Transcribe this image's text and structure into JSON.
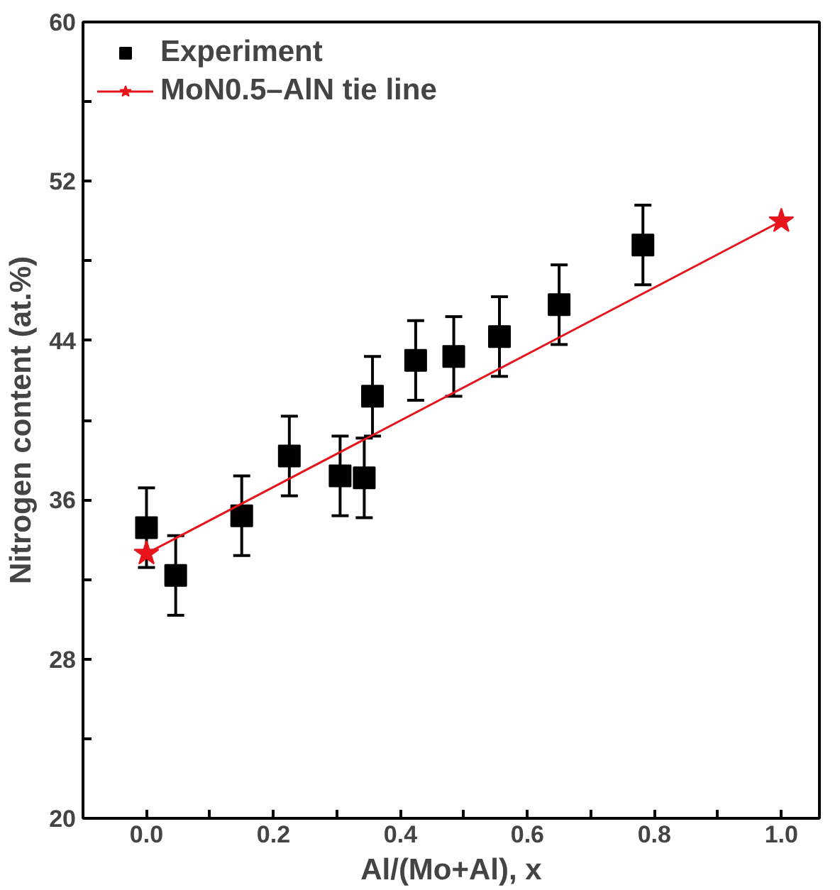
{
  "chart_data": {
    "type": "scatter",
    "xlabel": "Al/(Mo+Al), x",
    "ylabel": "Nitrogen content (at.%)",
    "xlim": [
      -0.1,
      1.06
    ],
    "ylim": [
      20,
      60
    ],
    "xticks": [
      {
        "value": -0.1,
        "label": null
      },
      {
        "value": 0,
        "label": "0.0"
      },
      {
        "value": 0.1,
        "label": null
      },
      0.2,
      {
        "value": 0.3,
        "label": null
      },
      0.4,
      {
        "value": 0.5,
        "label": null
      },
      0.6,
      {
        "value": 0.7,
        "label": null
      },
      0.8,
      {
        "value": 0.9,
        "label": null
      },
      {
        "value": 1,
        "label": "1.0"
      }
    ],
    "yticks": [
      20,
      {
        "value": 24,
        "label": null
      },
      28,
      {
        "value": 32,
        "label": null
      },
      36,
      {
        "value": 40,
        "label": null
      },
      44,
      {
        "value": 48,
        "label": null
      },
      52,
      {
        "value": 56,
        "label": null
      },
      60
    ],
    "legend": "top left",
    "grid": false,
    "series": [
      {
        "name": "Experiment",
        "marker": "square",
        "color": "#000000",
        "x": [
          0.0,
          0.046,
          0.15,
          0.225,
          0.305,
          0.343,
          0.356,
          0.424,
          0.484,
          0.556,
          0.65,
          0.782
        ],
        "values": [
          34.6,
          32.2,
          35.2,
          38.2,
          37.2,
          37.1,
          41.2,
          43.0,
          43.2,
          44.2,
          45.8,
          48.8
        ],
        "errors": [
          2,
          2,
          2,
          2,
          2,
          2,
          2,
          2,
          2,
          2,
          2,
          2
        ]
      },
      {
        "name": "MoN0.5–AlN tie line",
        "type": "line",
        "marker": "star",
        "color": "#e8141c",
        "x": [
          0.0,
          1.0
        ],
        "values": [
          33.3,
          50
        ]
      }
    ]
  }
}
